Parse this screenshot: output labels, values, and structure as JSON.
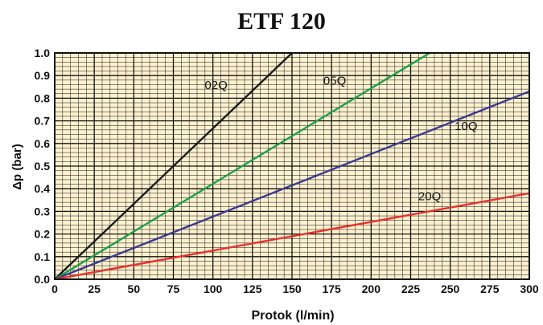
{
  "chart_data": {
    "type": "line",
    "title": "ETF 120",
    "xlabel": "Protok (l/min)",
    "ylabel": "Δp (bar)",
    "xlim": [
      0,
      300
    ],
    "ylim": [
      0,
      1.0
    ],
    "x_ticks": [
      "0",
      "25",
      "50",
      "75",
      "100",
      "125",
      "150",
      "175",
      "200",
      "225",
      "250",
      "275",
      "300"
    ],
    "y_ticks": [
      "0.0",
      "0.1",
      "0.2",
      "0.3",
      "0.4",
      "0.5",
      "0.6",
      "0.7",
      "0.8",
      "0.9",
      "1.0"
    ],
    "grid": true,
    "background_color": "#fdf1cf",
    "series": [
      {
        "name": "02Q",
        "color": "#1a1a1a",
        "points": [
          [
            0,
            0
          ],
          [
            150,
            1.0
          ]
        ]
      },
      {
        "name": "05Q",
        "color": "#1e9e48",
        "points": [
          [
            0,
            0
          ],
          [
            237,
            1.0
          ]
        ]
      },
      {
        "name": "10Q",
        "color": "#3b3a8f",
        "points": [
          [
            0,
            0
          ],
          [
            300,
            0.83
          ]
        ]
      },
      {
        "name": "20Q",
        "color": "#e8302a",
        "points": [
          [
            0,
            0
          ],
          [
            300,
            0.38
          ]
        ]
      }
    ]
  }
}
